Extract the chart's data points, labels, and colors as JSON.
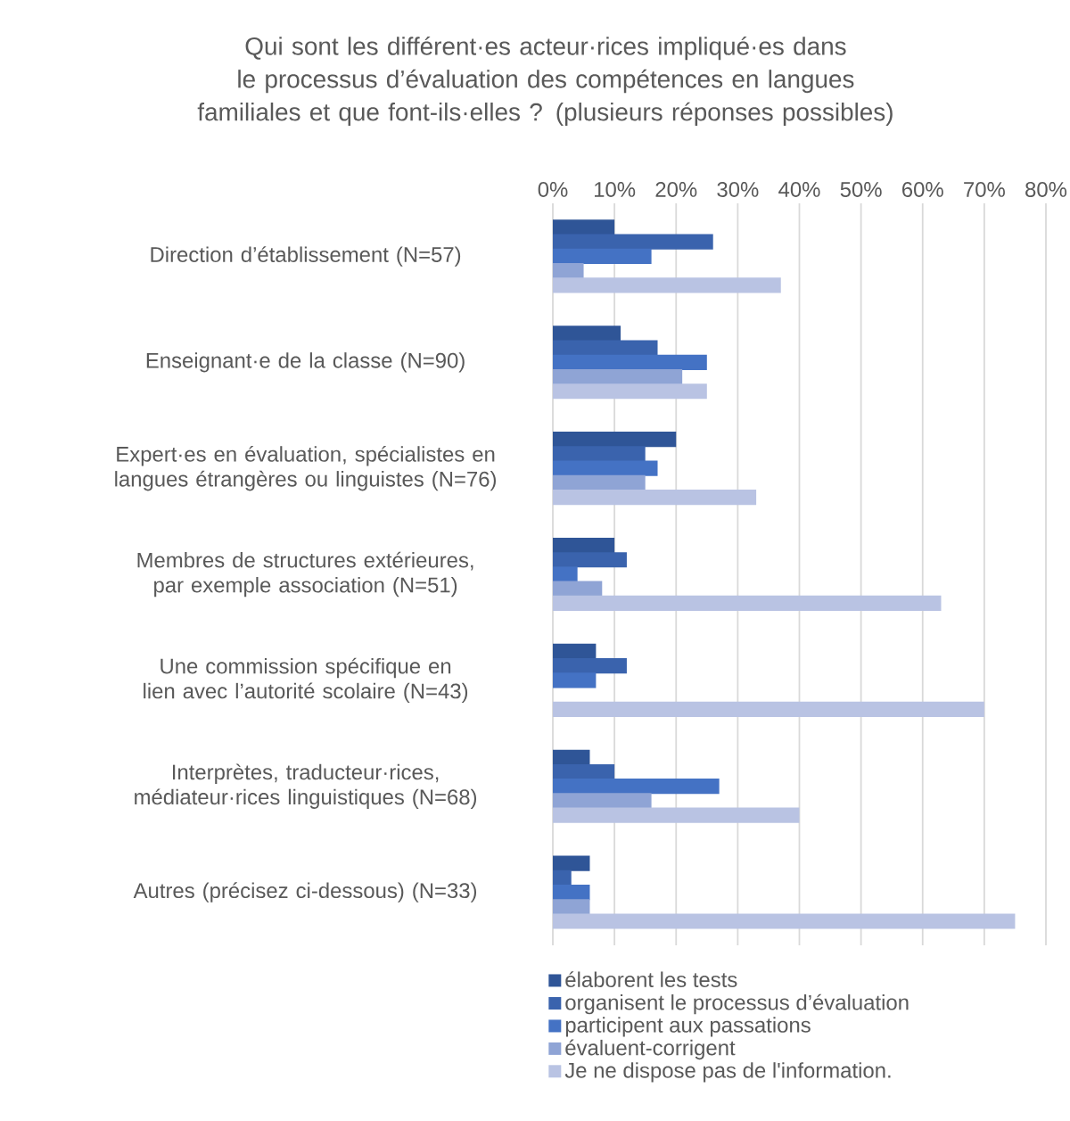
{
  "chart_data": {
    "type": "bar",
    "orientation": "horizontal",
    "title": "Qui sont les différent·es acteur·rices impliqué·es dans le processus d’évaluation des compétences en langues familiales et que font-ils·elles ? (plusieurs réponses possibles)",
    "categories": [
      "Direction d’établissement (N=57)",
      "Enseignant·e de la classe (N=90)",
      "Expert·es en évaluation, spécialistes en langues étrangères ou linguistes (N=76)",
      "Membres de structures extérieures, par exemple association (N=51)",
      "Une commission spécifique en lien avec l’autorité scolaire (N=43)",
      "Interprètes, traducteur·rices, médiateur·rices linguistiques (N=68)",
      "Autres (précisez ci-dessous) (N=33)"
    ],
    "series": [
      {
        "name": "élaborent les tests",
        "color": "#2f5597",
        "values": [
          10,
          11,
          20,
          10,
          7,
          6,
          6
        ]
      },
      {
        "name": "organisent le processus d’évaluation",
        "color": "#3a63ad",
        "values": [
          26,
          17,
          15,
          12,
          12,
          10,
          3
        ]
      },
      {
        "name": "participent aux passations",
        "color": "#4472c4",
        "values": [
          16,
          25,
          17,
          4,
          7,
          27,
          6
        ]
      },
      {
        "name": "évaluent-corrigent",
        "color": "#8fa4d5",
        "values": [
          5,
          21,
          15,
          8,
          0,
          16,
          6
        ]
      },
      {
        "name": "Je ne dispose pas de l'information.",
        "color": "#b9c3e3",
        "values": [
          37,
          25,
          33,
          63,
          70,
          40,
          75
        ]
      }
    ],
    "xlim": [
      0,
      80
    ],
    "xticks": [
      {
        "value": 0,
        "label": "0%"
      },
      {
        "value": 10,
        "label": "10%"
      },
      {
        "value": 20,
        "label": "20%"
      },
      {
        "value": 30,
        "label": "30%"
      },
      {
        "value": 40,
        "label": "40%"
      },
      {
        "value": 50,
        "label": "50%"
      },
      {
        "value": 60,
        "label": "60%"
      },
      {
        "value": 70,
        "label": "70%"
      },
      {
        "value": 80,
        "label": "80%"
      }
    ],
    "grid": "x",
    "legend": "bottom"
  }
}
